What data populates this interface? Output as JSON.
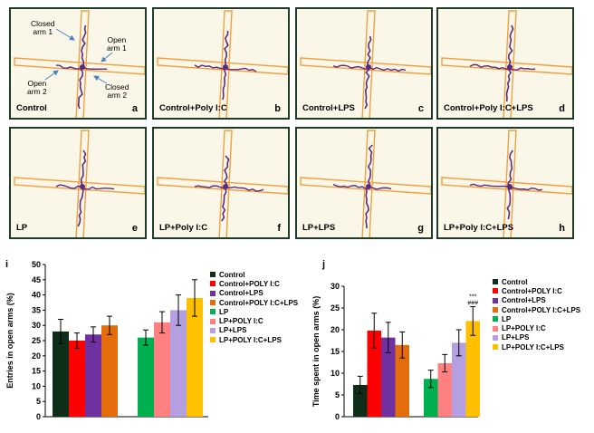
{
  "panels": [
    {
      "label": "Control",
      "letter": "a"
    },
    {
      "label": "Control+Poly I:C",
      "letter": "b"
    },
    {
      "label": "Control+LPS",
      "letter": "c"
    },
    {
      "label": "Control+Poly I:C+LPS",
      "letter": "d"
    },
    {
      "label": "LP",
      "letter": "e"
    },
    {
      "label": "LP+Poly I:C",
      "letter": "f"
    },
    {
      "label": "LP+LPS",
      "letter": "g"
    },
    {
      "label": "LP+Poly I:C+LPS",
      "letter": "h"
    }
  ],
  "annotations": {
    "closed_arm_1": "Closed\narm 1",
    "open_arm_1": "Open\narm 1",
    "open_arm_2": "Open\narm 2",
    "closed_arm_2": "Closed\narm 2"
  },
  "colors": {
    "maze_arm": "#f0a040",
    "track": "#5a2a80",
    "panel_border": "#1f3d26",
    "series": [
      "#0f2e1a",
      "#ff0000",
      "#7030a0",
      "#e46c0a",
      "#00b050",
      "#ff8080",
      "#b4a0e0",
      "#ffc000"
    ]
  },
  "chart_data": [
    {
      "panel_letter": "i",
      "type": "bar",
      "ylabel": "Entries in open arms (%)",
      "ylim": [
        0,
        50
      ],
      "yticks": [
        "0",
        "5",
        "10",
        "15",
        "20",
        "25",
        "30",
        "35",
        "40",
        "45",
        "50"
      ],
      "groups": [
        [
          "Control",
          "Control+POLY I:C",
          "Control+LPS",
          "Control+POLY I:C+LPS"
        ],
        [
          "LP",
          "LP+POLY I:C",
          "LP+LPS",
          "LP+POLY I:C+LPS"
        ]
      ],
      "values": [
        28,
        25,
        27,
        30,
        26,
        31,
        35,
        39
      ],
      "errors": [
        4,
        2.5,
        2.5,
        3,
        2.5,
        3.5,
        5,
        6
      ],
      "significance": [
        "",
        "",
        "",
        "",
        "",
        "",
        "",
        ""
      ],
      "legend": [
        "Control",
        "Control+POLY I:C",
        "Control+LPS",
        "Control+POLY I:C+LPS",
        "LP",
        "LP+POLY I:C",
        "LP+LPS",
        "LP+POLY I:C+LPS"
      ]
    },
    {
      "panel_letter": "j",
      "type": "bar",
      "ylabel": "Time spent in open arms (%)",
      "ylim": [
        0,
        30
      ],
      "yticks": [
        "0",
        "5",
        "10",
        "15",
        "20",
        "25",
        "30"
      ],
      "groups": [
        [
          "Control",
          "Control+POLY I:C",
          "Control+LPS",
          "Control+POLY I:C+LPS"
        ],
        [
          "LP",
          "LP+POLY I:C",
          "LP+LPS",
          "LP+POLY I:C+LPS"
        ]
      ],
      "values": [
        7.3,
        19.8,
        18.2,
        16.5,
        8.7,
        12.3,
        17,
        22
      ],
      "errors": [
        2,
        4,
        3.5,
        3,
        2,
        2,
        3,
        3.3
      ],
      "significance": [
        "",
        "",
        "",
        "",
        "",
        "",
        "",
        "***\n###"
      ],
      "legend": [
        "Control",
        "Control+POLY I:C",
        "Control+LPS",
        "Control+POLY I:C+LPS",
        "LP",
        "LP+POLY I:C",
        "LP+LPS",
        "LP+POLY I:C+LPS"
      ]
    }
  ]
}
